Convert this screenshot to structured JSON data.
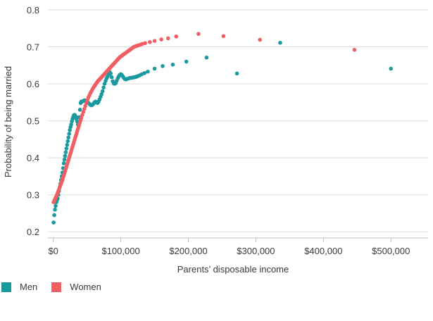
{
  "chart_data": {
    "type": "scatter",
    "title": "",
    "xlabel": "Parents’ disposable income",
    "ylabel": "Probability of being married",
    "xlim": [
      -8000,
      555000
    ],
    "ylim": [
      0.17,
      0.8
    ],
    "x_ticks": [
      0,
      100000,
      200000,
      300000,
      400000,
      500000
    ],
    "x_tick_labels": [
      "$0",
      "$100,000",
      "$200,000",
      "$300,000",
      "$400,000",
      "$500,000"
    ],
    "y_ticks": [
      0.2,
      0.3,
      0.4,
      0.5,
      0.6,
      0.7,
      0.8
    ],
    "y_tick_labels": [
      "0.2",
      "0.3",
      "0.4",
      "0.5",
      "0.6",
      "0.7",
      "0.8"
    ],
    "grid": true,
    "legend_position": "bottom-left",
    "series": [
      {
        "name": "Men",
        "color": "#1a9aa0",
        "points": [
          [
            500,
            0.225
          ],
          [
            1500,
            0.245
          ],
          [
            2500,
            0.26
          ],
          [
            3500,
            0.27
          ],
          [
            4500,
            0.28
          ],
          [
            5500,
            0.285
          ],
          [
            6500,
            0.29
          ],
          [
            7500,
            0.3
          ],
          [
            8500,
            0.31
          ],
          [
            9500,
            0.32
          ],
          [
            10500,
            0.33
          ],
          [
            11500,
            0.34
          ],
          [
            12500,
            0.35
          ],
          [
            13500,
            0.36
          ],
          [
            14500,
            0.372
          ],
          [
            15500,
            0.385
          ],
          [
            16500,
            0.395
          ],
          [
            17500,
            0.405
          ],
          [
            18500,
            0.415
          ],
          [
            19500,
            0.425
          ],
          [
            20500,
            0.435
          ],
          [
            21500,
            0.445
          ],
          [
            22500,
            0.455
          ],
          [
            23500,
            0.465
          ],
          [
            24500,
            0.475
          ],
          [
            25500,
            0.483
          ],
          [
            26500,
            0.49
          ],
          [
            27500,
            0.498
          ],
          [
            28500,
            0.505
          ],
          [
            29500,
            0.51
          ],
          [
            30500,
            0.515
          ],
          [
            31500,
            0.516
          ],
          [
            32500,
            0.514
          ],
          [
            33500,
            0.51
          ],
          [
            34500,
            0.505
          ],
          [
            35500,
            0.498
          ],
          [
            36500,
            0.49
          ],
          [
            37500,
            0.492
          ],
          [
            38500,
            0.51
          ],
          [
            39500,
            0.53
          ],
          [
            40500,
            0.548
          ],
          [
            41500,
            0.552
          ],
          [
            43000,
            0.552
          ],
          [
            44500,
            0.554
          ],
          [
            46000,
            0.555
          ],
          [
            47500,
            0.555
          ],
          [
            49000,
            0.553
          ],
          [
            50500,
            0.55
          ],
          [
            52000,
            0.548
          ],
          [
            53500,
            0.546
          ],
          [
            55000,
            0.543
          ],
          [
            56500,
            0.542
          ],
          [
            58000,
            0.543
          ],
          [
            59500,
            0.546
          ],
          [
            61000,
            0.55
          ],
          [
            62500,
            0.552
          ],
          [
            64000,
            0.55
          ],
          [
            65500,
            0.548
          ],
          [
            67000,
            0.552
          ],
          [
            68500,
            0.558
          ],
          [
            70000,
            0.565
          ],
          [
            71500,
            0.572
          ],
          [
            73000,
            0.58
          ],
          [
            74500,
            0.59
          ],
          [
            76000,
            0.6
          ],
          [
            77500,
            0.608
          ],
          [
            79000,
            0.615
          ],
          [
            80500,
            0.62
          ],
          [
            82000,
            0.625
          ],
          [
            83500,
            0.632
          ],
          [
            85000,
            0.628
          ],
          [
            86500,
            0.618
          ],
          [
            88000,
            0.607
          ],
          [
            89500,
            0.601
          ],
          [
            91000,
            0.6
          ],
          [
            92500,
            0.602
          ],
          [
            94000,
            0.608
          ],
          [
            95500,
            0.615
          ],
          [
            97000,
            0.62
          ],
          [
            98500,
            0.624
          ],
          [
            100000,
            0.626
          ],
          [
            101500,
            0.624
          ],
          [
            103000,
            0.62
          ],
          [
            104500,
            0.616
          ],
          [
            106000,
            0.613
          ],
          [
            107500,
            0.612
          ],
          [
            109000,
            0.613
          ],
          [
            110500,
            0.614
          ],
          [
            112000,
            0.615
          ],
          [
            113500,
            0.616
          ],
          [
            115000,
            0.616
          ],
          [
            116500,
            0.617
          ],
          [
            118000,
            0.617
          ],
          [
            119500,
            0.618
          ],
          [
            121000,
            0.618
          ],
          [
            122500,
            0.619
          ],
          [
            124000,
            0.62
          ],
          [
            125500,
            0.621
          ],
          [
            128000,
            0.623
          ],
          [
            131000,
            0.626
          ],
          [
            135000,
            0.629
          ],
          [
            140000,
            0.633
          ],
          [
            150000,
            0.641
          ],
          [
            162000,
            0.648
          ],
          [
            177000,
            0.652
          ],
          [
            197000,
            0.66
          ],
          [
            227000,
            0.671
          ],
          [
            272000,
            0.628
          ],
          [
            336000,
            0.711
          ],
          [
            500000,
            0.641
          ]
        ]
      },
      {
        "name": "Women",
        "color": "#ef5f63",
        "points": [
          [
            500,
            0.28
          ],
          [
            1500,
            0.284
          ],
          [
            2500,
            0.288
          ],
          [
            3500,
            0.292
          ],
          [
            4500,
            0.296
          ],
          [
            5500,
            0.3
          ],
          [
            6500,
            0.305
          ],
          [
            7500,
            0.31
          ],
          [
            8500,
            0.315
          ],
          [
            9500,
            0.32
          ],
          [
            10500,
            0.325
          ],
          [
            11500,
            0.33
          ],
          [
            12500,
            0.335
          ],
          [
            13500,
            0.34
          ],
          [
            14500,
            0.346
          ],
          [
            15500,
            0.352
          ],
          [
            16500,
            0.358
          ],
          [
            17500,
            0.364
          ],
          [
            18500,
            0.37
          ],
          [
            19500,
            0.376
          ],
          [
            20500,
            0.382
          ],
          [
            21500,
            0.388
          ],
          [
            22500,
            0.394
          ],
          [
            23500,
            0.4
          ],
          [
            24500,
            0.406
          ],
          [
            25500,
            0.412
          ],
          [
            26500,
            0.418
          ],
          [
            27500,
            0.424
          ],
          [
            28500,
            0.43
          ],
          [
            29500,
            0.436
          ],
          [
            30500,
            0.442
          ],
          [
            31500,
            0.448
          ],
          [
            32500,
            0.454
          ],
          [
            33500,
            0.46
          ],
          [
            34500,
            0.466
          ],
          [
            35500,
            0.472
          ],
          [
            36500,
            0.478
          ],
          [
            37500,
            0.484
          ],
          [
            38500,
            0.49
          ],
          [
            39500,
            0.496
          ],
          [
            40500,
            0.502
          ],
          [
            41500,
            0.508
          ],
          [
            43000,
            0.516
          ],
          [
            44500,
            0.524
          ],
          [
            46000,
            0.532
          ],
          [
            47500,
            0.54
          ],
          [
            49000,
            0.548
          ],
          [
            50500,
            0.556
          ],
          [
            52000,
            0.563
          ],
          [
            53500,
            0.569
          ],
          [
            55000,
            0.575
          ],
          [
            56500,
            0.58
          ],
          [
            58000,
            0.585
          ],
          [
            59500,
            0.59
          ],
          [
            61000,
            0.594
          ],
          [
            62500,
            0.598
          ],
          [
            64000,
            0.602
          ],
          [
            65500,
            0.606
          ],
          [
            67000,
            0.609
          ],
          [
            68500,
            0.612
          ],
          [
            70000,
            0.615
          ],
          [
            71500,
            0.618
          ],
          [
            73000,
            0.621
          ],
          [
            74500,
            0.624
          ],
          [
            76000,
            0.627
          ],
          [
            77500,
            0.63
          ],
          [
            79000,
            0.633
          ],
          [
            80500,
            0.636
          ],
          [
            82000,
            0.639
          ],
          [
            83500,
            0.642
          ],
          [
            85000,
            0.645
          ],
          [
            86500,
            0.648
          ],
          [
            88000,
            0.651
          ],
          [
            89500,
            0.654
          ],
          [
            91000,
            0.657
          ],
          [
            92500,
            0.66
          ],
          [
            94000,
            0.663
          ],
          [
            95500,
            0.666
          ],
          [
            97000,
            0.669
          ],
          [
            98500,
            0.672
          ],
          [
            100000,
            0.674
          ],
          [
            101500,
            0.676
          ],
          [
            103000,
            0.678
          ],
          [
            104500,
            0.68
          ],
          [
            106000,
            0.682
          ],
          [
            107500,
            0.684
          ],
          [
            109000,
            0.686
          ],
          [
            110500,
            0.688
          ],
          [
            112000,
            0.69
          ],
          [
            113500,
            0.692
          ],
          [
            115000,
            0.694
          ],
          [
            116500,
            0.696
          ],
          [
            118000,
            0.698
          ],
          [
            119500,
            0.7
          ],
          [
            121000,
            0.701
          ],
          [
            122500,
            0.702
          ],
          [
            124000,
            0.703
          ],
          [
            126000,
            0.704
          ],
          [
            129000,
            0.706
          ],
          [
            132000,
            0.708
          ],
          [
            136000,
            0.71
          ],
          [
            143000,
            0.713
          ],
          [
            150000,
            0.716
          ],
          [
            160000,
            0.72
          ],
          [
            170000,
            0.723
          ],
          [
            182000,
            0.728
          ],
          [
            215000,
            0.735
          ],
          [
            252000,
            0.729
          ],
          [
            306000,
            0.719
          ],
          [
            446000,
            0.692
          ]
        ]
      }
    ]
  }
}
